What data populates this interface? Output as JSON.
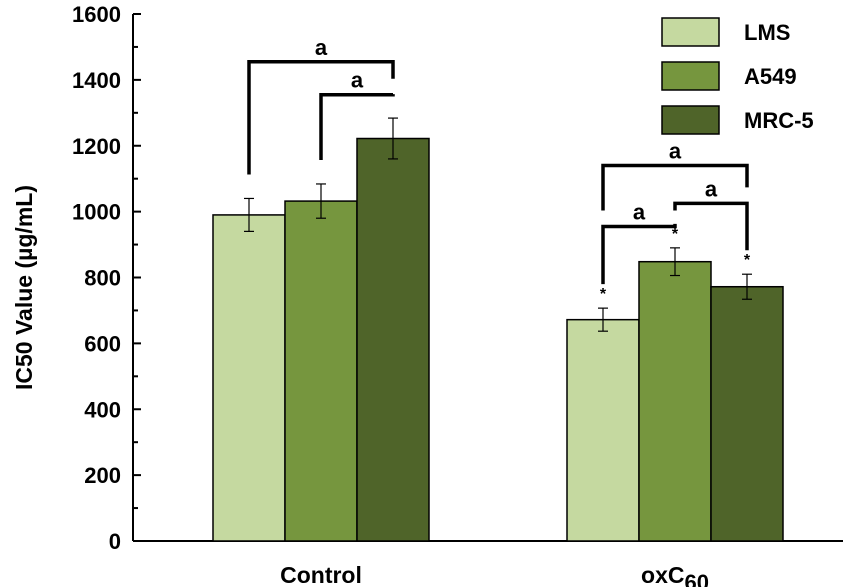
{
  "chart_data": {
    "type": "bar",
    "title": "",
    "xlabel": "",
    "ylabel": "IC50 Value (µg/mL)",
    "ylim": [
      0,
      1600
    ],
    "yticks": [
      0,
      200,
      400,
      600,
      800,
      1000,
      1200,
      1400,
      1600
    ],
    "categories": [
      {
        "label": "Control",
        "main": "Control",
        "sub": ""
      },
      {
        "label": "oxC60",
        "main": "oxC",
        "sub": "60"
      }
    ],
    "series": [
      {
        "name": "LMS",
        "color": "#c5d9a0",
        "values": [
          990,
          672
        ],
        "errors": [
          50,
          35
        ]
      },
      {
        "name": "A549",
        "color": "#76963e",
        "values": [
          1032,
          848
        ],
        "errors": [
          52,
          42
        ]
      },
      {
        "name": "MRC-5",
        "color": "#4f6429",
        "values": [
          1222,
          772
        ],
        "errors": [
          62,
          38
        ]
      }
    ],
    "significance": [
      {
        "category": 0,
        "from": 0,
        "to": 2,
        "label": "a",
        "level": 1455
      },
      {
        "category": 0,
        "from": 1,
        "to": 2,
        "label": "a",
        "level": 1355
      },
      {
        "category": 1,
        "from": 0,
        "to": 2,
        "label": "a",
        "level": 1140
      },
      {
        "category": 1,
        "from": 0,
        "to": 1,
        "label": "a",
        "level": 955
      },
      {
        "category": 1,
        "from": 1,
        "to": 2,
        "label": "a",
        "level": 1025
      }
    ],
    "asterisks": [
      {
        "category": 1,
        "series": 0,
        "label": "*"
      },
      {
        "category": 1,
        "series": 1,
        "label": "*"
      },
      {
        "category": 1,
        "series": 2,
        "label": "*"
      }
    ],
    "legend_position": "top-right",
    "grid": false
  }
}
